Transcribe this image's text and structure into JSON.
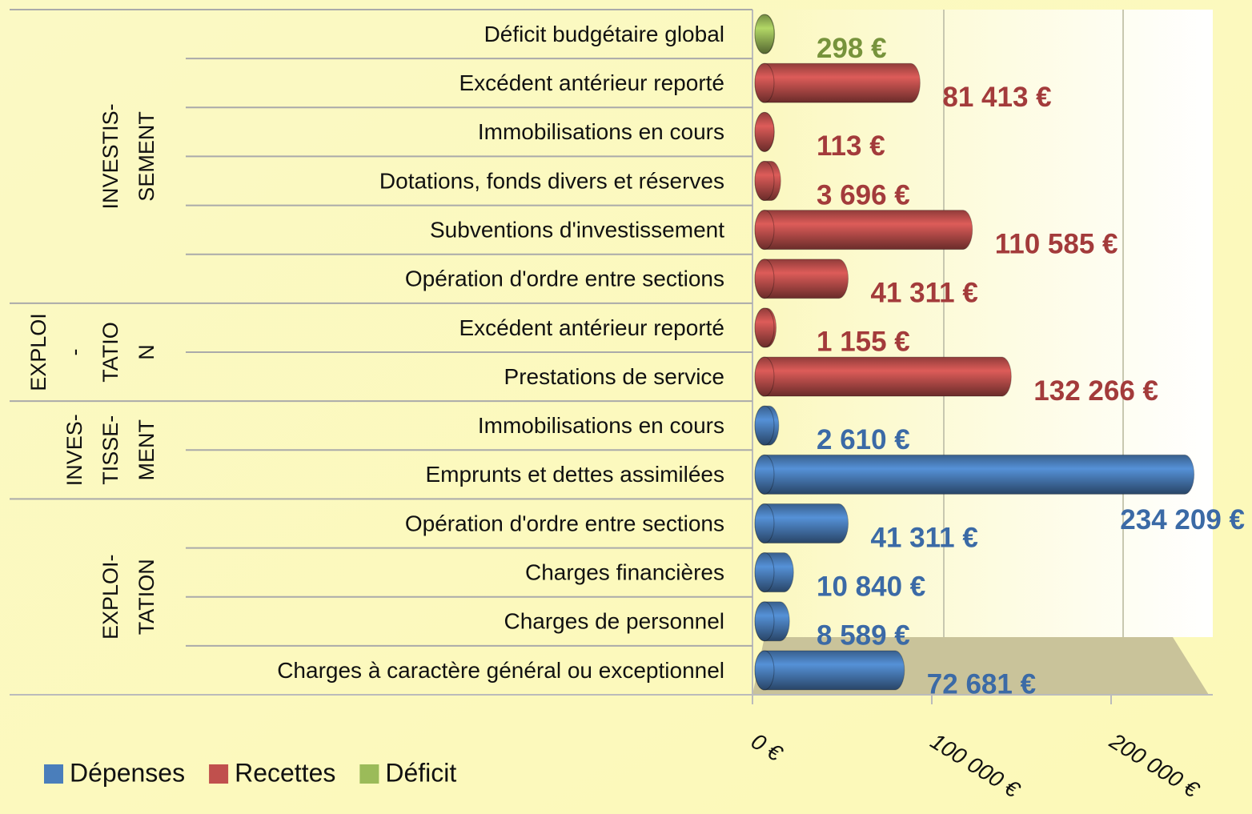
{
  "chart_data": {
    "type": "bar",
    "orientation": "horizontal",
    "groups": [
      {
        "label": [
          "INVESTIS-",
          "SEMENT"
        ],
        "categories": [
          "Déficit budgétaire global",
          "Excédent antérieur reporté",
          "Immobilisations en cours",
          "Dotations, fonds divers et réserves",
          "Subventions d'investissement",
          "Opération d'ordre entre sections"
        ]
      },
      {
        "label": [
          "EXPLOI",
          "-",
          "TATIO",
          "N"
        ],
        "categories": [
          "Excédent antérieur reporté",
          "Prestations de service"
        ]
      },
      {
        "label": [
          "INVES-",
          "TISSE-",
          "MENT"
        ],
        "categories": [
          "Immobilisations en cours",
          "Emprunts et dettes assimilées"
        ]
      },
      {
        "label": [
          "EXPLOI-",
          "TATION"
        ],
        "categories": [
          "Opération d'ordre entre sections",
          "Charges financières",
          "Charges de personnel",
          "Charges à caractère général ou exceptionnel"
        ]
      }
    ],
    "series": [
      {
        "name": "Dépenses",
        "color": "#4a7ebb",
        "values": [
          null,
          null,
          null,
          null,
          null,
          null,
          null,
          null,
          2610,
          234209,
          41311,
          10840,
          8589,
          72681
        ],
        "value_labels": [
          null,
          null,
          null,
          null,
          null,
          null,
          null,
          null,
          "2 610 €",
          "234 209 €",
          "41 311 €",
          "10 840 €",
          "8 589 €",
          "72 681 €"
        ],
        "label_color": "#3b6aa6"
      },
      {
        "name": "Recettes",
        "color": "#c0504d",
        "values": [
          null,
          81413,
          113,
          3696,
          110585,
          41311,
          1155,
          132266,
          null,
          null,
          null,
          null,
          null,
          null
        ],
        "value_labels": [
          null,
          "81 413 €",
          "113 €",
          "3 696 €",
          "110 585 €",
          "41 311 €",
          "1 155 €",
          "132 266 €",
          null,
          null,
          null,
          null,
          null,
          null
        ],
        "label_color": "#a33b3b"
      },
      {
        "name": "Déficit",
        "color": "#9bbb59",
        "values": [
          298,
          null,
          null,
          null,
          null,
          null,
          null,
          null,
          null,
          null,
          null,
          null,
          null,
          null
        ],
        "value_labels": [
          "298 €",
          null,
          null,
          null,
          null,
          null,
          null,
          null,
          null,
          null,
          null,
          null,
          null,
          null
        ],
        "label_color": "#77933c"
      }
    ],
    "xlim": [
      0,
      250000
    ],
    "xticks": [
      {
        "value": 0,
        "label": "0 €"
      },
      {
        "value": 100000,
        "label": "100 000 €"
      },
      {
        "value": 200000,
        "label": "200 000 €"
      }
    ],
    "grid": true,
    "legend": "bottom-left"
  }
}
